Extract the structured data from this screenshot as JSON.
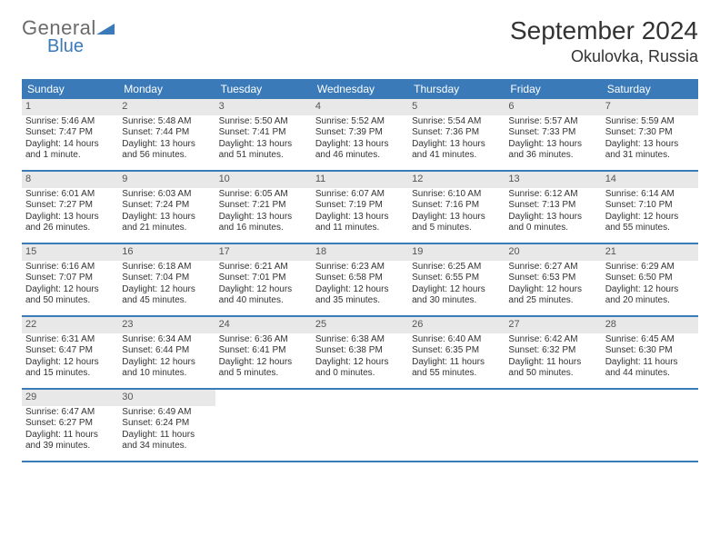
{
  "logo": {
    "text_general": "General",
    "text_blue": "Blue"
  },
  "title": "September 2024",
  "location": "Okulovka, Russia",
  "colors": {
    "header_bg": "#3a7ab8",
    "header_text": "#ffffff",
    "daynum_bg": "#e8e8e8",
    "daynum_text": "#555555",
    "border": "#3a7ab8",
    "body_text": "#333333",
    "logo_gray": "#6b6b6b",
    "logo_blue": "#3a7ab8"
  },
  "day_names": [
    "Sunday",
    "Monday",
    "Tuesday",
    "Wednesday",
    "Thursday",
    "Friday",
    "Saturday"
  ],
  "weeks": [
    [
      {
        "n": "1",
        "sr": "5:46 AM",
        "ss": "7:47 PM",
        "dl": "14 hours and 1 minute."
      },
      {
        "n": "2",
        "sr": "5:48 AM",
        "ss": "7:44 PM",
        "dl": "13 hours and 56 minutes."
      },
      {
        "n": "3",
        "sr": "5:50 AM",
        "ss": "7:41 PM",
        "dl": "13 hours and 51 minutes."
      },
      {
        "n": "4",
        "sr": "5:52 AM",
        "ss": "7:39 PM",
        "dl": "13 hours and 46 minutes."
      },
      {
        "n": "5",
        "sr": "5:54 AM",
        "ss": "7:36 PM",
        "dl": "13 hours and 41 minutes."
      },
      {
        "n": "6",
        "sr": "5:57 AM",
        "ss": "7:33 PM",
        "dl": "13 hours and 36 minutes."
      },
      {
        "n": "7",
        "sr": "5:59 AM",
        "ss": "7:30 PM",
        "dl": "13 hours and 31 minutes."
      }
    ],
    [
      {
        "n": "8",
        "sr": "6:01 AM",
        "ss": "7:27 PM",
        "dl": "13 hours and 26 minutes."
      },
      {
        "n": "9",
        "sr": "6:03 AM",
        "ss": "7:24 PM",
        "dl": "13 hours and 21 minutes."
      },
      {
        "n": "10",
        "sr": "6:05 AM",
        "ss": "7:21 PM",
        "dl": "13 hours and 16 minutes."
      },
      {
        "n": "11",
        "sr": "6:07 AM",
        "ss": "7:19 PM",
        "dl": "13 hours and 11 minutes."
      },
      {
        "n": "12",
        "sr": "6:10 AM",
        "ss": "7:16 PM",
        "dl": "13 hours and 5 minutes."
      },
      {
        "n": "13",
        "sr": "6:12 AM",
        "ss": "7:13 PM",
        "dl": "13 hours and 0 minutes."
      },
      {
        "n": "14",
        "sr": "6:14 AM",
        "ss": "7:10 PM",
        "dl": "12 hours and 55 minutes."
      }
    ],
    [
      {
        "n": "15",
        "sr": "6:16 AM",
        "ss": "7:07 PM",
        "dl": "12 hours and 50 minutes."
      },
      {
        "n": "16",
        "sr": "6:18 AM",
        "ss": "7:04 PM",
        "dl": "12 hours and 45 minutes."
      },
      {
        "n": "17",
        "sr": "6:21 AM",
        "ss": "7:01 PM",
        "dl": "12 hours and 40 minutes."
      },
      {
        "n": "18",
        "sr": "6:23 AM",
        "ss": "6:58 PM",
        "dl": "12 hours and 35 minutes."
      },
      {
        "n": "19",
        "sr": "6:25 AM",
        "ss": "6:55 PM",
        "dl": "12 hours and 30 minutes."
      },
      {
        "n": "20",
        "sr": "6:27 AM",
        "ss": "6:53 PM",
        "dl": "12 hours and 25 minutes."
      },
      {
        "n": "21",
        "sr": "6:29 AM",
        "ss": "6:50 PM",
        "dl": "12 hours and 20 minutes."
      }
    ],
    [
      {
        "n": "22",
        "sr": "6:31 AM",
        "ss": "6:47 PM",
        "dl": "12 hours and 15 minutes."
      },
      {
        "n": "23",
        "sr": "6:34 AM",
        "ss": "6:44 PM",
        "dl": "12 hours and 10 minutes."
      },
      {
        "n": "24",
        "sr": "6:36 AM",
        "ss": "6:41 PM",
        "dl": "12 hours and 5 minutes."
      },
      {
        "n": "25",
        "sr": "6:38 AM",
        "ss": "6:38 PM",
        "dl": "12 hours and 0 minutes."
      },
      {
        "n": "26",
        "sr": "6:40 AM",
        "ss": "6:35 PM",
        "dl": "11 hours and 55 minutes."
      },
      {
        "n": "27",
        "sr": "6:42 AM",
        "ss": "6:32 PM",
        "dl": "11 hours and 50 minutes."
      },
      {
        "n": "28",
        "sr": "6:45 AM",
        "ss": "6:30 PM",
        "dl": "11 hours and 44 minutes."
      }
    ],
    [
      {
        "n": "29",
        "sr": "6:47 AM",
        "ss": "6:27 PM",
        "dl": "11 hours and 39 minutes."
      },
      {
        "n": "30",
        "sr": "6:49 AM",
        "ss": "6:24 PM",
        "dl": "11 hours and 34 minutes."
      },
      null,
      null,
      null,
      null,
      null
    ]
  ],
  "labels": {
    "sunrise": "Sunrise:",
    "sunset": "Sunset:",
    "daylight": "Daylight:"
  }
}
